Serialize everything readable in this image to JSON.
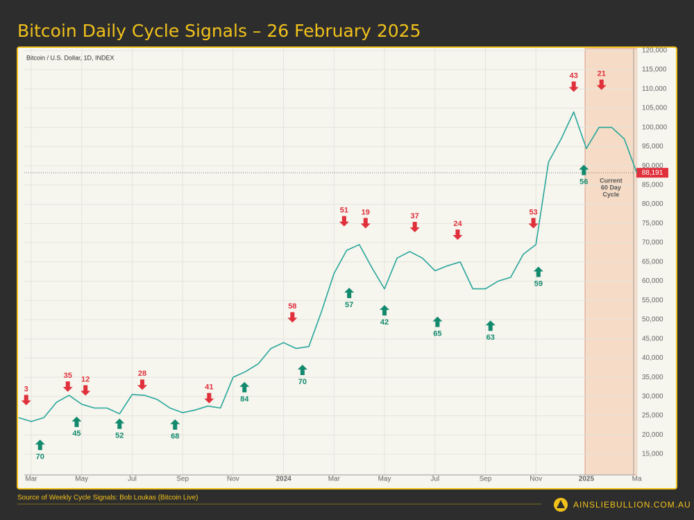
{
  "chart_data": {
    "type": "line",
    "title": "Bitcoin Daily Cycle Signals – 26 February 2025",
    "subtitle": "Bitcoin / U.S. Dollar, 1D, INDEX",
    "source": "Source of Weekly Cycle Signals: Bob Loukas (Bitcoin Live)",
    "brand": "AINSLIEBULLION.COM.AU",
    "color": "#26a69a",
    "top_color": "#e0303b",
    "bottom_color": "#138a6e",
    "categories": [
      null,
      "Mar",
      null,
      null,
      null,
      "May",
      null,
      null,
      null,
      "Jul",
      null,
      null,
      null,
      "Sep",
      null,
      null,
      null,
      "Nov",
      null,
      null,
      null,
      "2024",
      null,
      null,
      null,
      "Mar",
      null,
      null,
      null,
      "May",
      null,
      null,
      null,
      "Jul",
      null,
      null,
      null,
      "Sep",
      null,
      null,
      null,
      "Nov",
      null,
      null,
      null,
      "2025",
      null,
      null,
      null,
      "Ma"
    ],
    "values": [
      24500,
      23500,
      24500,
      28500,
      30300,
      28000,
      27000,
      27000,
      25500,
      30500,
      30300,
      29200,
      27000,
      25800,
      26500,
      27500,
      27000,
      35000,
      36500,
      38500,
      42500,
      44000,
      42500,
      43000,
      52000,
      62000,
      68000,
      69500,
      63500,
      58000,
      66000,
      67700,
      66000,
      62700,
      64000,
      65000,
      58000,
      58000,
      60000,
      61000,
      67000,
      69500,
      91000,
      97000,
      104000,
      94500,
      100000,
      100000,
      97000,
      88191
    ],
    "ylim": [
      9600,
      120500
    ],
    "yticks": [
      {
        "value": 15000,
        "label": "15,000"
      },
      {
        "value": 20000,
        "label": "20,000"
      },
      {
        "value": 25000,
        "label": "25,000"
      },
      {
        "value": 30000,
        "label": "30,000"
      },
      {
        "value": 35000,
        "label": "35,000"
      },
      {
        "value": 40000,
        "label": "40,000"
      },
      {
        "value": 45000,
        "label": "45,000"
      },
      {
        "value": 50000,
        "label": "50,000"
      },
      {
        "value": 55000,
        "label": "55,000"
      },
      {
        "value": 60000,
        "label": "60,000"
      },
      {
        "value": 65000,
        "label": "65,000"
      },
      {
        "value": 70000,
        "label": "70,000"
      },
      {
        "value": 75000,
        "label": "75,000"
      },
      {
        "value": 80000,
        "label": "80,000"
      },
      {
        "value": 85000,
        "label": "85,000"
      },
      {
        "value": 90000,
        "label": "90,000"
      },
      {
        "value": 95000,
        "label": "95,000"
      },
      {
        "value": 100000,
        "label": "100,000"
      },
      {
        "value": 105000,
        "label": "105,000"
      },
      {
        "value": 110000,
        "label": "110,000"
      },
      {
        "value": 115000,
        "label": "115,000"
      },
      {
        "value": 120000,
        "label": "120,000"
      }
    ],
    "grid": true,
    "current_price": {
      "value": 88191,
      "label": "88,191"
    },
    "cycle_shade": {
      "start": 44.9,
      "end": 49,
      "lines": [
        "Current",
        "60 Day",
        "Cycle"
      ]
    },
    "signals": [
      {
        "label": "3",
        "x": 0.6,
        "y": 27000,
        "kind": "top"
      },
      {
        "label": "35",
        "x": 3.9,
        "y": 30500,
        "kind": "top"
      },
      {
        "label": "12",
        "x": 5.3,
        "y": 29500,
        "kind": "top"
      },
      {
        "label": "28",
        "x": 9.8,
        "y": 31000,
        "kind": "top"
      },
      {
        "label": "41",
        "x": 15.1,
        "y": 27500,
        "kind": "top"
      },
      {
        "label": "58",
        "x": 21.7,
        "y": 48500,
        "kind": "top"
      },
      {
        "label": "51",
        "x": 25.8,
        "y": 73500,
        "kind": "top"
      },
      {
        "label": "19",
        "x": 27.5,
        "y": 73000,
        "kind": "top"
      },
      {
        "label": "37",
        "x": 31.4,
        "y": 72000,
        "kind": "top"
      },
      {
        "label": "24",
        "x": 34.8,
        "y": 70000,
        "kind": "top"
      },
      {
        "label": "53",
        "x": 40.8,
        "y": 73000,
        "kind": "top"
      },
      {
        "label": "43",
        "x": 44.0,
        "y": 108500,
        "kind": "top"
      },
      {
        "label": "21",
        "x": 46.2,
        "y": 109000,
        "kind": "top"
      },
      {
        "label": "70",
        "x": 1.7,
        "y": 19500,
        "kind": "bottom"
      },
      {
        "label": "45",
        "x": 4.6,
        "y": 25500,
        "kind": "bottom"
      },
      {
        "label": "52",
        "x": 8.0,
        "y": 25000,
        "kind": "bottom"
      },
      {
        "label": "68",
        "x": 12.4,
        "y": 24800,
        "kind": "bottom"
      },
      {
        "label": "84",
        "x": 17.9,
        "y": 34500,
        "kind": "bottom"
      },
      {
        "label": "70",
        "x": 22.5,
        "y": 39000,
        "kind": "bottom"
      },
      {
        "label": "57",
        "x": 26.2,
        "y": 59000,
        "kind": "bottom"
      },
      {
        "label": "42",
        "x": 29.0,
        "y": 54500,
        "kind": "bottom"
      },
      {
        "label": "65",
        "x": 33.2,
        "y": 51500,
        "kind": "bottom"
      },
      {
        "label": "63",
        "x": 37.4,
        "y": 50500,
        "kind": "bottom"
      },
      {
        "label": "59",
        "x": 41.2,
        "y": 64500,
        "kind": "bottom"
      },
      {
        "label": "56",
        "x": 44.8,
        "y": 91000,
        "kind": "bottom"
      }
    ]
  }
}
